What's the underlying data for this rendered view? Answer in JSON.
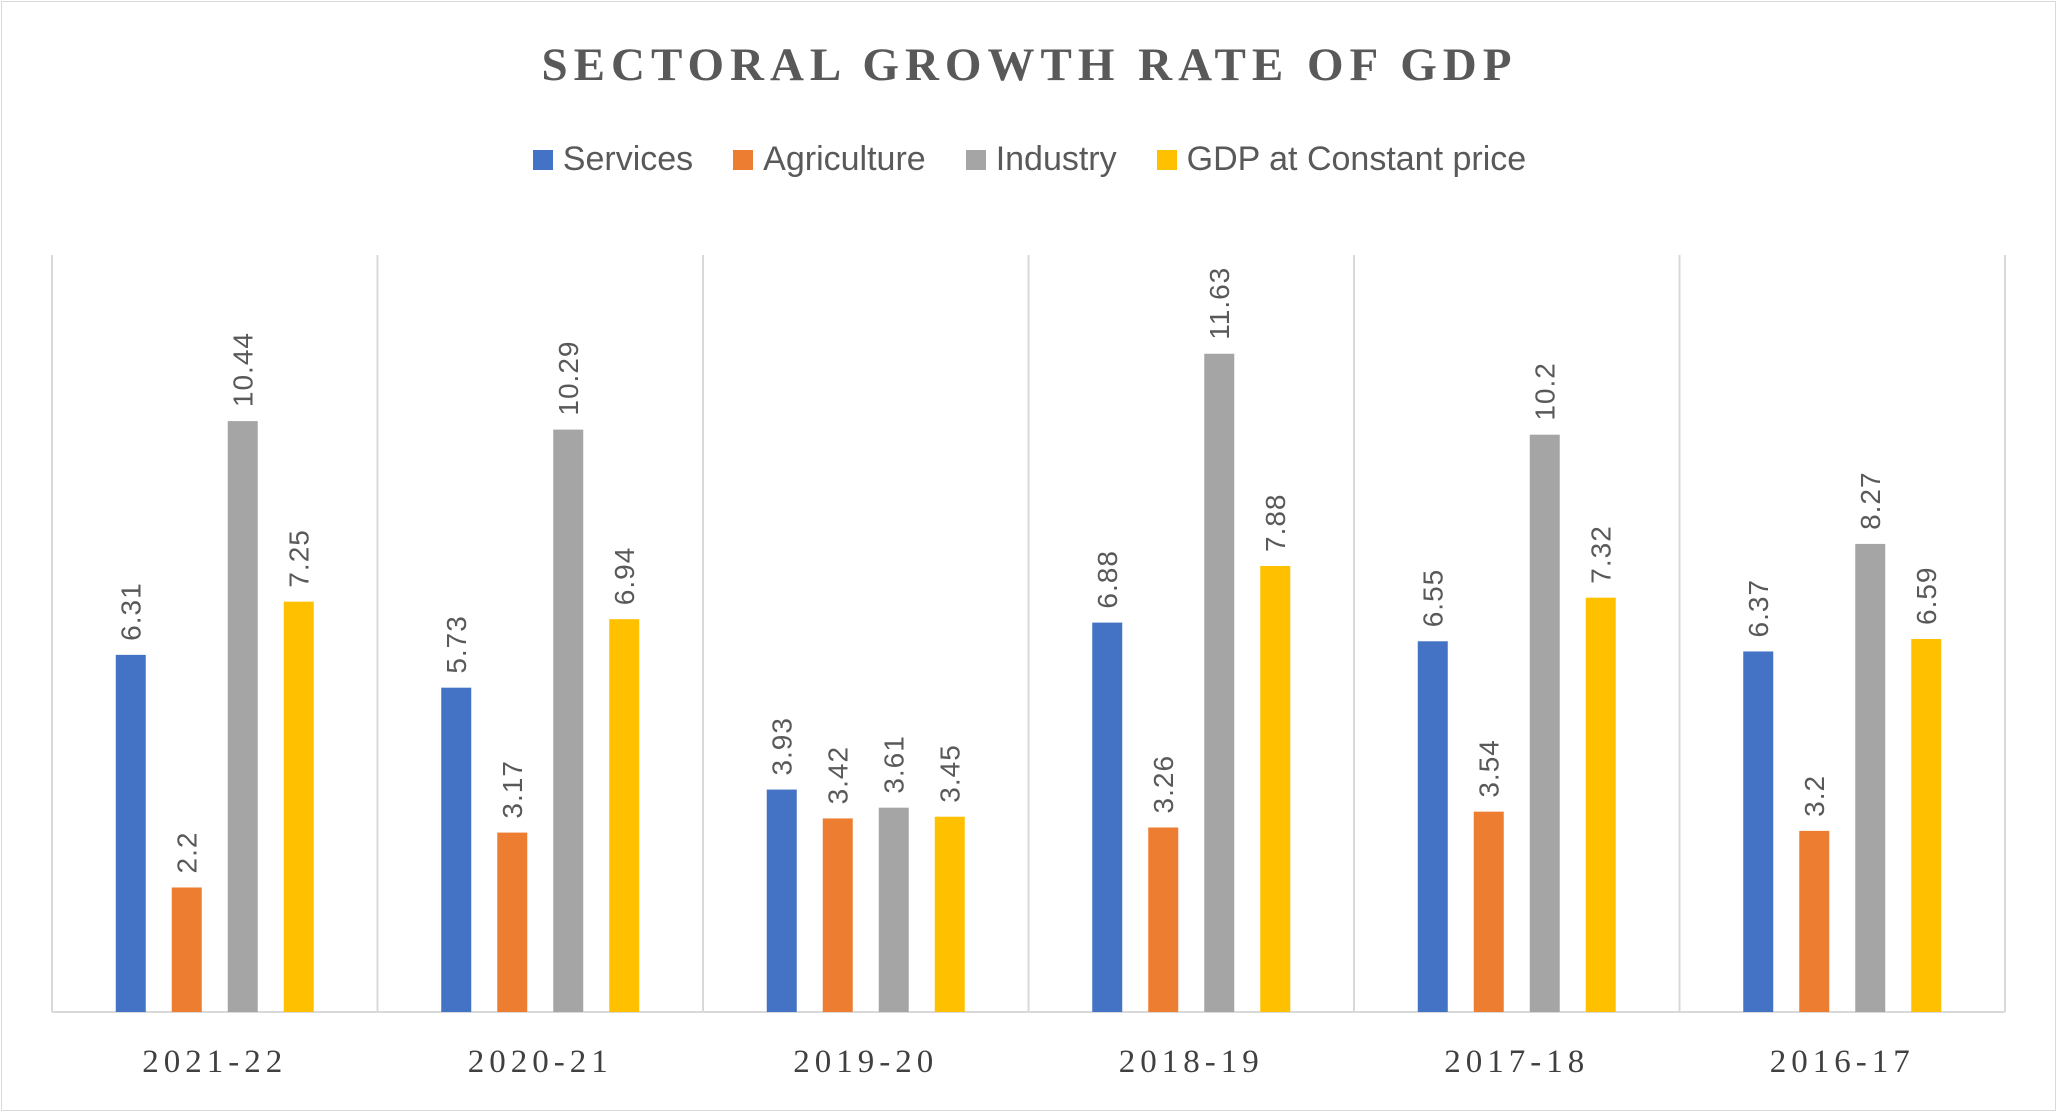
{
  "chart_data": {
    "type": "bar",
    "title": "SECTORAL GROWTH RATE OF GDP",
    "categories": [
      "2021-22",
      "2020-21",
      "2019-20",
      "2018-19",
      "2017-18",
      "2016-17"
    ],
    "series": [
      {
        "name": "Services",
        "color": "#4472C4",
        "values": [
          6.31,
          5.73,
          3.93,
          6.88,
          6.55,
          6.37
        ],
        "labels": [
          "6.31",
          "5.73",
          "3.93",
          "6.88",
          "6.55",
          "6.37"
        ]
      },
      {
        "name": "Agriculture",
        "color": "#ED7D31",
        "values": [
          2.2,
          3.17,
          3.42,
          3.26,
          3.54,
          3.2
        ],
        "labels": [
          "2.2",
          "3.17",
          "3.42",
          "3.26",
          "3.54",
          "3.2"
        ]
      },
      {
        "name": "Industry",
        "color": "#A5A5A5",
        "values": [
          10.44,
          10.29,
          3.61,
          11.63,
          10.2,
          8.27
        ],
        "labels": [
          "10.44",
          "10.29",
          "3.61",
          "11.63",
          "10.2",
          "8.27"
        ]
      },
      {
        "name": "GDP at Constant price",
        "color": "#FFC000",
        "values": [
          7.25,
          6.94,
          3.45,
          7.88,
          7.32,
          6.59
        ],
        "labels": [
          "7.25",
          "6.94",
          "3.45",
          "7.88",
          "7.32",
          "6.59"
        ]
      }
    ],
    "ylim": [
      0,
      14
    ],
    "legend_position": "top",
    "grid": "vertical category separators"
  }
}
